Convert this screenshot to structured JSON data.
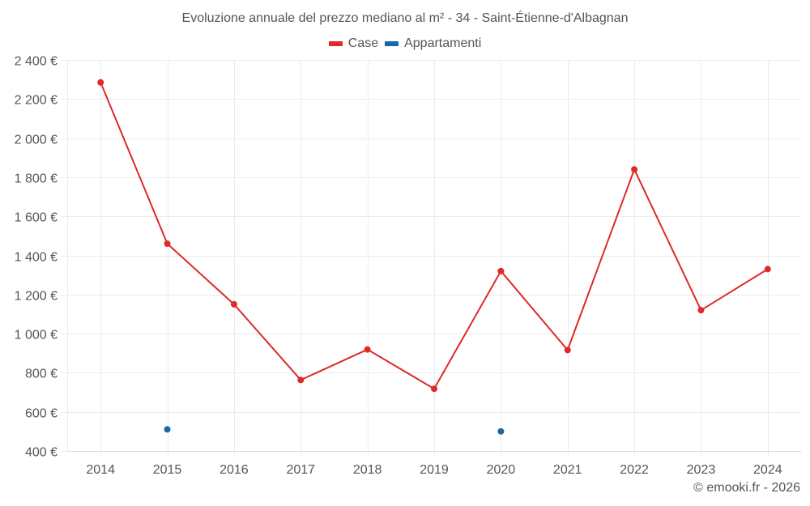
{
  "title": "Evoluzione annuale del prezzo mediano al m² - 34 - Saint-Étienne-d'Albagnan",
  "legend": [
    {
      "label": "Case",
      "color": "#dd2a2a"
    },
    {
      "label": "Appartamenti",
      "color": "#1a67a3"
    }
  ],
  "footer": "© emooki.fr - 2026",
  "chart_data": {
    "type": "line",
    "title": "Evoluzione annuale del prezzo mediano al m² - 34 - Saint-Étienne-d'Albagnan",
    "xlabel": "",
    "ylabel": "",
    "categories": [
      "2014",
      "2015",
      "2016",
      "2017",
      "2018",
      "2019",
      "2020",
      "2021",
      "2022",
      "2023",
      "2024"
    ],
    "series": [
      {
        "name": "Case",
        "color": "#dd2a2a",
        "values": [
          2285,
          1460,
          1150,
          763,
          919,
          718,
          1320,
          916,
          1840,
          1120,
          1330
        ]
      },
      {
        "name": "Appartamenti",
        "color": "#1a67a3",
        "values": [
          null,
          510,
          null,
          null,
          null,
          null,
          500,
          null,
          null,
          null,
          null
        ]
      }
    ],
    "ylim": [
      400,
      2400
    ],
    "yticks": [
      400,
      600,
      800,
      1000,
      1200,
      1400,
      1600,
      1800,
      2000,
      2200,
      2400
    ],
    "ytick_labels": [
      "400 €",
      "600 €",
      "800 €",
      "1 000 €",
      "1 200 €",
      "1 400 €",
      "1 600 €",
      "1 800 €",
      "2 000 €",
      "2 200 €",
      "2 400 €"
    ],
    "grid": true,
    "legend_position": "top"
  }
}
